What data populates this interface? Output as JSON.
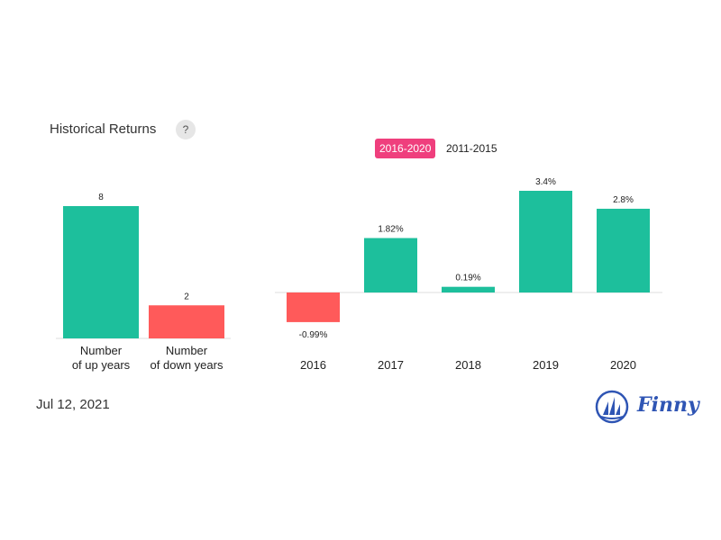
{
  "header": {
    "title": "Historical Returns",
    "help_label": "?"
  },
  "tabs": [
    {
      "label": "2016-2020",
      "active": true
    },
    {
      "label": "2011-2015",
      "active": false
    }
  ],
  "footer": {
    "date": "Jul 12, 2021",
    "brand": "Finny"
  },
  "colors": {
    "positive": "#1dbf9c",
    "negative": "#ff5a5a",
    "accent": "#ef3f7d",
    "brand": "#2f55b4"
  },
  "chart_data": [
    {
      "type": "bar",
      "categories": [
        "Number\nof up years",
        "Number\nof down years"
      ],
      "values": [
        8,
        2
      ],
      "labels": [
        "8",
        "2"
      ],
      "ylim": [
        0,
        8
      ]
    },
    {
      "type": "bar",
      "categories": [
        "2016",
        "2017",
        "2018",
        "2019",
        "2020"
      ],
      "values": [
        -0.99,
        1.82,
        0.19,
        3.4,
        2.8
      ],
      "labels": [
        "-0.99%",
        "1.82%",
        "0.19%",
        "3.4%",
        "2.8%"
      ],
      "ylim": [
        -0.99,
        3.4
      ]
    }
  ]
}
